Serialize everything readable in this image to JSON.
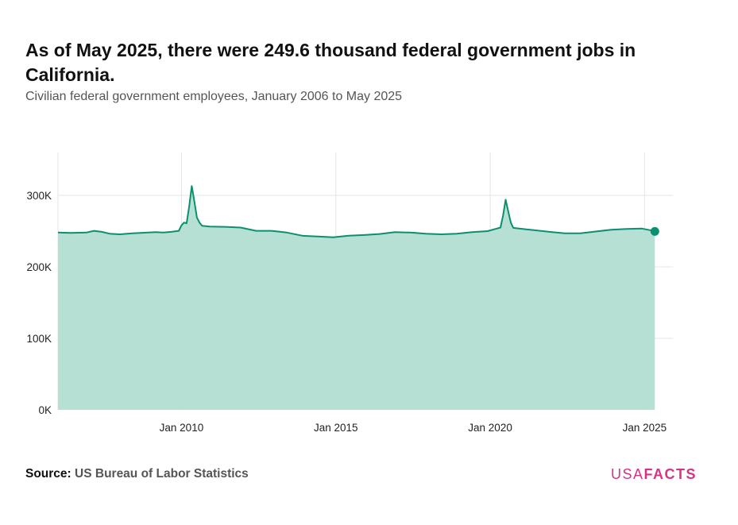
{
  "header": {
    "title": "As of May 2025, there were 249.6 thousand federal government jobs in California.",
    "subtitle": "Civilian federal government employees, January 2006 to May 2025"
  },
  "footer": {
    "source_label": "Source:",
    "source_text": "US Bureau of Labor Statistics",
    "logo_usa": "USA",
    "logo_facts": "FACTS"
  },
  "colors": {
    "line": "#0b8f6e",
    "area": "#b3ded3",
    "grid": "#e4e4e4",
    "axis_text": "#222222",
    "logo": "#d63384"
  },
  "chart_data": {
    "type": "area",
    "title": "As of May 2025, there were 249.6 thousand federal government jobs in California.",
    "xlabel": "",
    "ylabel": "",
    "x_range": [
      "2006-01",
      "2025-12"
    ],
    "ylim": [
      0,
      360000
    ],
    "y_ticks": [
      0,
      100000,
      200000,
      300000
    ],
    "y_tick_labels": [
      "0K",
      "100K",
      "200K",
      "300K"
    ],
    "x_ticks": [
      "2010-01",
      "2015-01",
      "2020-01",
      "2025-01"
    ],
    "x_tick_labels": [
      "Jan 2010",
      "Jan 2015",
      "Jan 2020",
      "Jan 2025"
    ],
    "grid": true,
    "last_point_marker": true,
    "series": [
      {
        "name": "",
        "points": [
          [
            "2006-01",
            248000
          ],
          [
            "2006-06",
            247500
          ],
          [
            "2006-12",
            248000
          ],
          [
            "2007-03",
            250500
          ],
          [
            "2007-06",
            249000
          ],
          [
            "2007-09",
            246500
          ],
          [
            "2008-01",
            245500
          ],
          [
            "2008-06",
            247000
          ],
          [
            "2008-12",
            248000
          ],
          [
            "2009-03",
            248500
          ],
          [
            "2009-06",
            248000
          ],
          [
            "2009-09",
            249000
          ],
          [
            "2009-12",
            250500
          ],
          [
            "2010-01",
            258000
          ],
          [
            "2010-02",
            262000
          ],
          [
            "2010-03",
            261000
          ],
          [
            "2010-04",
            285000
          ],
          [
            "2010-05",
            313000
          ],
          [
            "2010-06",
            292000
          ],
          [
            "2010-07",
            269000
          ],
          [
            "2010-08",
            262000
          ],
          [
            "2010-09",
            257500
          ],
          [
            "2010-12",
            256500
          ],
          [
            "2011-06",
            256000
          ],
          [
            "2011-12",
            255000
          ],
          [
            "2012-06",
            250500
          ],
          [
            "2012-12",
            250500
          ],
          [
            "2013-06",
            248000
          ],
          [
            "2013-12",
            243500
          ],
          [
            "2014-06",
            242500
          ],
          [
            "2014-12",
            241500
          ],
          [
            "2015-06",
            243500
          ],
          [
            "2015-12",
            244500
          ],
          [
            "2016-06",
            246000
          ],
          [
            "2016-12",
            248500
          ],
          [
            "2017-06",
            248000
          ],
          [
            "2017-12",
            246500
          ],
          [
            "2018-06",
            245500
          ],
          [
            "2018-12",
            246500
          ],
          [
            "2019-06",
            248500
          ],
          [
            "2019-12",
            250000
          ],
          [
            "2020-03",
            253000
          ],
          [
            "2020-05",
            255000
          ],
          [
            "2020-06",
            272000
          ],
          [
            "2020-07",
            294000
          ],
          [
            "2020-08",
            278000
          ],
          [
            "2020-09",
            262000
          ],
          [
            "2020-10",
            254500
          ],
          [
            "2021-03",
            252500
          ],
          [
            "2021-06",
            251500
          ],
          [
            "2021-12",
            249000
          ],
          [
            "2022-06",
            247000
          ],
          [
            "2022-12",
            247000
          ],
          [
            "2023-06",
            249500
          ],
          [
            "2023-12",
            252000
          ],
          [
            "2024-06",
            253000
          ],
          [
            "2024-12",
            253500
          ],
          [
            "2025-03",
            251500
          ],
          [
            "2025-05",
            249600
          ]
        ]
      }
    ]
  }
}
